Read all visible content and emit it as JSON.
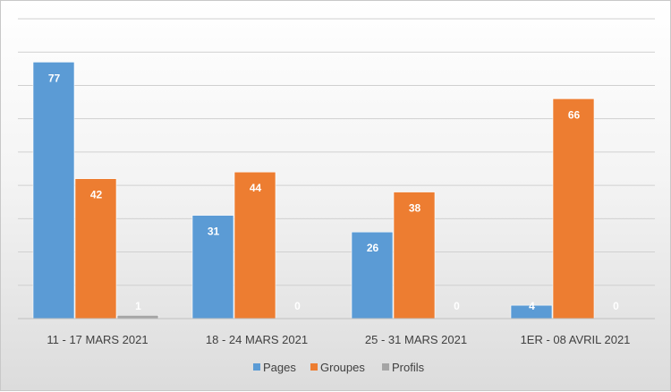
{
  "chart_data": {
    "type": "bar",
    "categories": [
      "11 - 17 MARS 2021",
      "18 - 24 MARS 2021",
      "25 - 31 MARS 2021",
      "1ER - 08 AVRIL 2021"
    ],
    "series": [
      {
        "name": "Pages",
        "values": [
          77,
          31,
          26,
          4
        ],
        "color": "#5b9bd5"
      },
      {
        "name": "Groupes",
        "values": [
          42,
          44,
          38,
          66
        ],
        "color": "#ed7d31"
      },
      {
        "name": "Profils",
        "values": [
          1,
          0,
          0,
          0
        ],
        "color": "#a5a5a5"
      }
    ],
    "ylim": [
      0,
      90
    ],
    "ytick_step": 10,
    "grid": true,
    "legend_position": "bottom",
    "title": "",
    "xlabel": "",
    "ylabel": ""
  }
}
